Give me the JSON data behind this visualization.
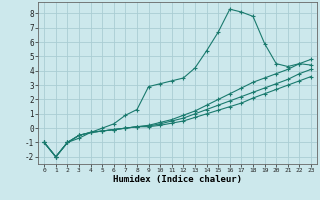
{
  "xlabel": "Humidex (Indice chaleur)",
  "background_color": "#cce8ec",
  "grid_color": "#aacdd4",
  "line_color": "#1a7a6e",
  "xlim": [
    -0.5,
    23.5
  ],
  "ylim": [
    -2.5,
    8.8
  ],
  "xticks": [
    0,
    1,
    2,
    3,
    4,
    5,
    6,
    7,
    8,
    9,
    10,
    11,
    12,
    13,
    14,
    15,
    16,
    17,
    18,
    19,
    20,
    21,
    22,
    23
  ],
  "yticks": [
    -2,
    -1,
    0,
    1,
    2,
    3,
    4,
    5,
    6,
    7,
    8
  ],
  "lines": [
    {
      "x": [
        0,
        1,
        2,
        3,
        4,
        5,
        6,
        7,
        8,
        9,
        10,
        11,
        12,
        13,
        14,
        15,
        16,
        17,
        18,
        19,
        20,
        21,
        22,
        23
      ],
      "y": [
        -1.0,
        -2.0,
        -1.0,
        -0.7,
        -0.3,
        0.0,
        0.3,
        0.9,
        1.3,
        2.9,
        3.1,
        3.3,
        3.5,
        4.2,
        5.4,
        6.7,
        8.3,
        8.1,
        7.8,
        5.9,
        4.5,
        4.3,
        4.5,
        4.4
      ]
    },
    {
      "x": [
        0,
        1,
        2,
        3,
        4,
        5,
        6,
        7,
        8,
        9,
        10,
        11,
        12,
        13,
        14,
        15,
        16,
        17,
        18,
        19,
        20,
        21,
        22,
        23
      ],
      "y": [
        -1.0,
        -2.0,
        -1.0,
        -0.5,
        -0.3,
        -0.2,
        -0.1,
        0.0,
        0.1,
        0.2,
        0.4,
        0.6,
        0.9,
        1.2,
        1.6,
        2.0,
        2.4,
        2.8,
        3.2,
        3.5,
        3.8,
        4.1,
        4.5,
        4.8
      ]
    },
    {
      "x": [
        0,
        1,
        2,
        3,
        4,
        5,
        6,
        7,
        8,
        9,
        10,
        11,
        12,
        13,
        14,
        15,
        16,
        17,
        18,
        19,
        20,
        21,
        22,
        23
      ],
      "y": [
        -1.0,
        -2.0,
        -1.0,
        -0.5,
        -0.3,
        -0.2,
        -0.1,
        0.0,
        0.1,
        0.15,
        0.3,
        0.5,
        0.7,
        1.0,
        1.3,
        1.6,
        1.9,
        2.2,
        2.5,
        2.8,
        3.1,
        3.4,
        3.8,
        4.1
      ]
    },
    {
      "x": [
        0,
        1,
        2,
        3,
        4,
        5,
        6,
        7,
        8,
        9,
        10,
        11,
        12,
        13,
        14,
        15,
        16,
        17,
        18,
        19,
        20,
        21,
        22,
        23
      ],
      "y": [
        -1.0,
        -2.0,
        -1.0,
        -0.5,
        -0.3,
        -0.2,
        -0.1,
        0.0,
        0.1,
        0.1,
        0.2,
        0.35,
        0.5,
        0.75,
        1.0,
        1.25,
        1.5,
        1.75,
        2.1,
        2.4,
        2.7,
        3.0,
        3.3,
        3.6
      ]
    }
  ]
}
